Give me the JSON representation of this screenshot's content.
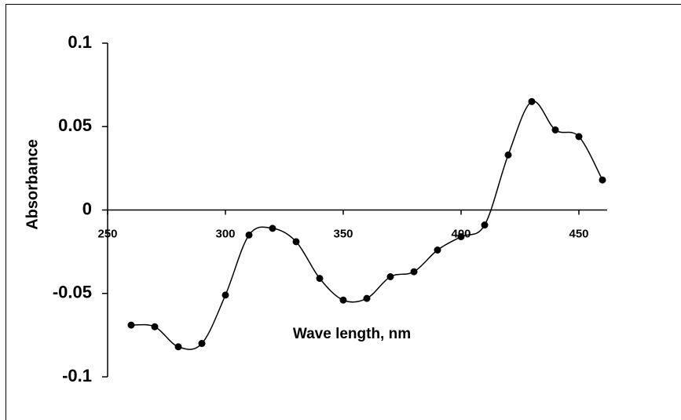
{
  "chart_data": {
    "type": "line",
    "x_label": "Wave length, nm",
    "y_label": "Absorbance",
    "x": [
      260,
      270,
      280,
      290,
      300,
      310,
      320,
      330,
      340,
      350,
      360,
      370,
      380,
      390,
      400,
      410,
      420,
      430,
      440,
      450,
      460
    ],
    "series": [
      {
        "color": "#000000",
        "values": [
          -0.069,
          -0.07,
          -0.082,
          -0.08,
          -0.051,
          -0.015,
          -0.011,
          -0.019,
          -0.041,
          -0.054,
          -0.053,
          -0.04,
          -0.037,
          -0.024,
          -0.016,
          -0.009,
          0.033,
          0.065,
          0.048,
          0.044,
          0.018
        ]
      }
    ],
    "xlim": [
      250,
      462
    ],
    "xticks": [
      250,
      300,
      350,
      400,
      450
    ],
    "ylim": [
      -0.1,
      0.1
    ],
    "yticks": [
      -0.1,
      -0.05,
      0,
      0.05,
      0.1
    ],
    "smooth": true,
    "markers": true
  }
}
